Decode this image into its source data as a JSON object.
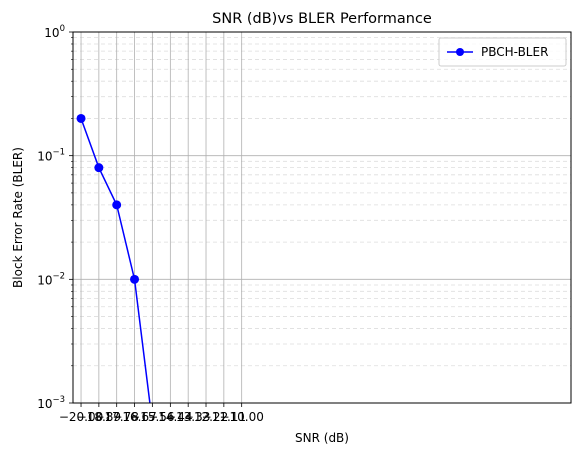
{
  "chart_data": {
    "type": "line",
    "title": "SNR (dB)vs BLER Performance",
    "xlabel": "SNR (dB)",
    "ylabel": "Block Error Rate (BLER)",
    "yscale": "log",
    "grid": true,
    "minor_grid": true,
    "legend_position": "top-right",
    "xlim": [
      -20.5,
      10.5
    ],
    "ylim": [
      0.001,
      1
    ],
    "x_ticks": [
      -20.0,
      -18.89,
      -17.78,
      -16.67,
      -15.56,
      -14.44,
      -13.33,
      -12.22,
      -11.11,
      -10.0
    ],
    "x_tick_labels": [
      "−20.00",
      "−18.89",
      "−17.78",
      "−16.67",
      "−15.56",
      "−14.44",
      "−13.33",
      "−12.22",
      "−11.11",
      "−10.00"
    ],
    "y_ticks": [
      0.001,
      0.01,
      0.1,
      1
    ],
    "y_tick_labels": [
      {
        "base": "10",
        "exp": "−3"
      },
      {
        "base": "10",
        "exp": "−2"
      },
      {
        "base": "10",
        "exp": "−1"
      },
      {
        "base": "10",
        "exp": "0"
      }
    ],
    "series": [
      {
        "name": "PBCH-BLER",
        "color": "#0000ff",
        "marker": "circle",
        "x": [
          -20.0,
          -18.89,
          -17.78,
          -16.67,
          -15.56,
          -14.44,
          -13.33,
          -12.22,
          -11.11,
          -10.0
        ],
        "y": [
          0.2,
          0.08,
          0.04,
          0.01,
          0,
          0,
          0,
          0,
          0,
          0
        ]
      }
    ]
  }
}
